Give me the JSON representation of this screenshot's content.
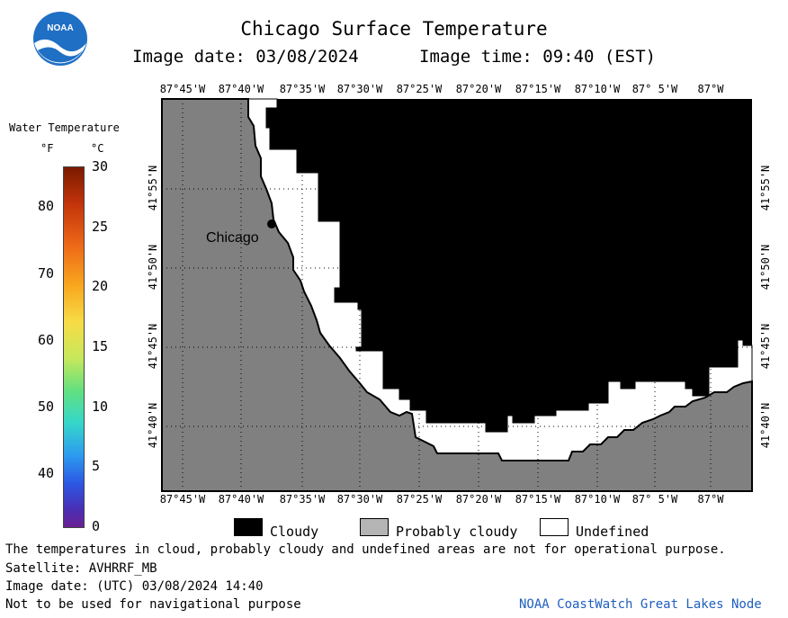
{
  "header": {
    "title": "Chicago Surface Temperature",
    "image_date": "Image date: 03/08/2024",
    "image_time": "Image time: 09:40 (EST)"
  },
  "logo": {
    "text": "NOAA"
  },
  "colorbar": {
    "title": "Water Temperature",
    "unit_f": "°F",
    "unit_c": "°C",
    "f_ticks": [
      "80",
      "70",
      "60",
      "50",
      "40"
    ],
    "c_ticks": [
      "30",
      "25",
      "20",
      "15",
      "10",
      "5",
      "0"
    ]
  },
  "map": {
    "lon_labels": [
      "87°45'W",
      "87°40'W",
      "87°35'W",
      "87°30'W",
      "87°25'W",
      "87°20'W",
      "87°15'W",
      "87°10'W",
      "87° 5'W",
      "87°W"
    ],
    "lat_labels": [
      "41°55'N",
      "41°50'N",
      "41°45'N",
      "41°40'N"
    ],
    "city_label": "Chicago",
    "colors": {
      "land": "#808080",
      "cloudy": "#000000",
      "undefined": "#ffffff"
    }
  },
  "legend": {
    "cloudy": "Cloudy",
    "probably_cloudy": "Probably cloudy",
    "undefined": "Undefined",
    "colors": {
      "cloudy": "#000000",
      "probably_cloudy": "#b4b4b4",
      "undefined": "#ffffff"
    }
  },
  "footer": {
    "disclaimer": "The temperatures in cloud, probably cloudy and undefined areas are not for operational purpose.",
    "satellite": "Satellite: AVHRRF_MB",
    "utc_date": "Image date: (UTC) 03/08/2024  14:40",
    "nav_warning": "Not to be used for navigational purpose",
    "credit": "NOAA CoastWatch Great Lakes Node"
  }
}
